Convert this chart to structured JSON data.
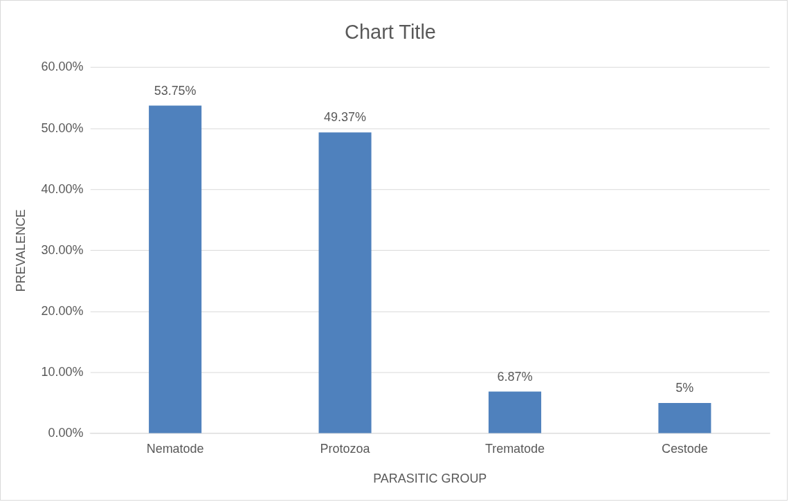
{
  "chart_data": {
    "type": "bar",
    "title": "Chart Title",
    "xlabel": "PARASITIC GROUP",
    "ylabel": "PREVALENCE",
    "categories": [
      "Nematode",
      "Protozoa",
      "Trematode",
      "Cestode"
    ],
    "values": [
      53.75,
      49.37,
      6.87,
      5
    ],
    "value_labels": [
      "53.75%",
      "49.37%",
      "6.87%",
      "5%"
    ],
    "color": "#4f81bd",
    "ylim": [
      0,
      60
    ],
    "yticks": [
      {
        "value": 0,
        "label": "0.00%"
      },
      {
        "value": 10,
        "label": "10.00%"
      },
      {
        "value": 20,
        "label": "20.00%"
      },
      {
        "value": 30,
        "label": "30.00%"
      },
      {
        "value": 40,
        "label": "40.00%"
      },
      {
        "value": 50,
        "label": "50.00%"
      },
      {
        "value": 60,
        "label": "60.00%"
      }
    ],
    "grid": "y",
    "legend": false
  }
}
